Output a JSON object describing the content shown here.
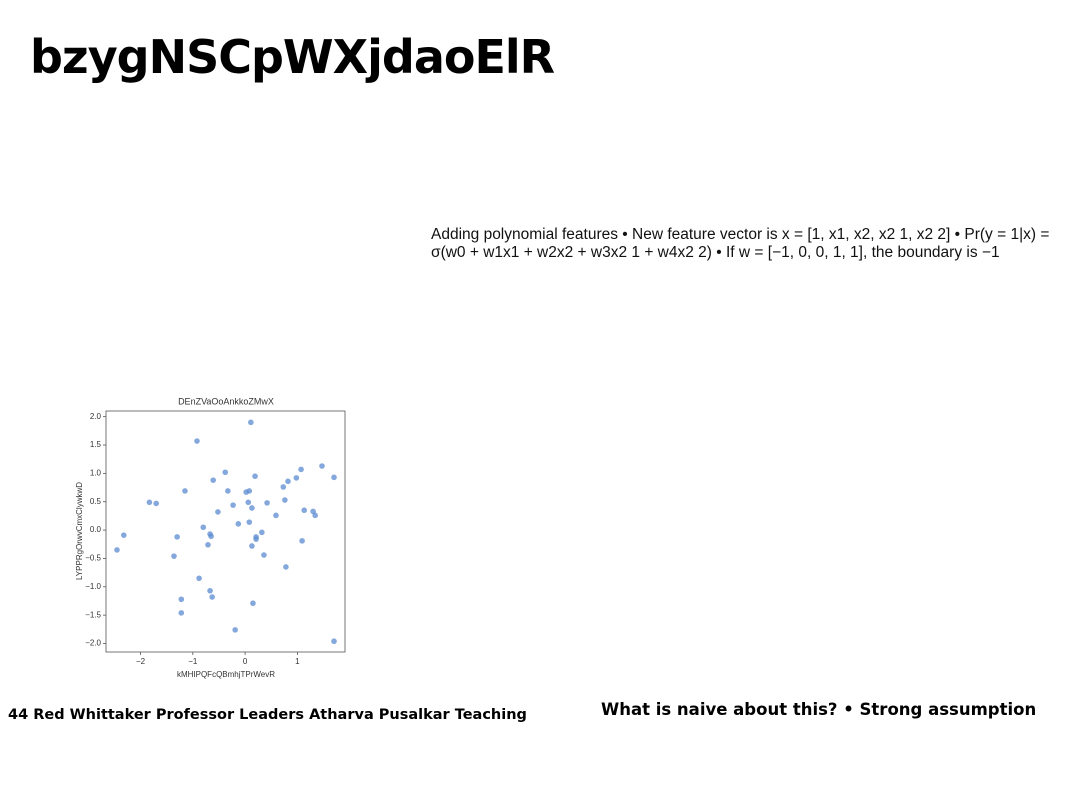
{
  "header": {
    "title": "bzygNSCpWXjdaoElR"
  },
  "body": {
    "text": "Adding polynomial features • New feature vector is x = [1, x1, x2, x2 1, x2 2] • Pr(y = 1|x) = σ(w0 + w1x1 + w2x2 + w3x2 1 + w4x2 2) • If w = [−1, 0, 0, 1, 1], the boundary is −1"
  },
  "footer": {
    "left": "44 Red Whittaker Professor Leaders Atharva Pusalkar Teaching",
    "right": "What is naive about this? • Strong assumption"
  },
  "chart_data": {
    "type": "scatter",
    "title": "DEnZVaOoAnkkoZMwX",
    "xlabel": "kMHIPQFcQBmhjTPrWevR",
    "ylabel": "LYPPRgOrwvCmxClywkwD",
    "color": "#5b8bd0",
    "x": [
      -2.45,
      -2.32,
      -1.83,
      -1.7,
      -1.36,
      -1.3,
      -1.15,
      -1.22,
      -1.22,
      -0.92,
      -0.88,
      -0.8,
      -0.71,
      -0.67,
      -0.65,
      -0.67,
      -0.63,
      -0.61,
      -0.52,
      -0.38,
      -0.33,
      -0.23,
      -0.19,
      -0.13,
      0.02,
      0.06,
      0.08,
      0.08,
      0.11,
      0.13,
      0.13,
      0.15,
      0.19,
      0.21,
      0.21,
      0.32,
      0.36,
      0.42,
      0.59,
      0.73,
      0.76,
      0.82,
      0.78,
      0.98,
      1.07,
      1.09,
      1.13,
      1.3,
      1.34,
      1.47,
      1.7,
      1.7
    ],
    "values": [
      -0.35,
      -0.09,
      0.49,
      0.47,
      -0.46,
      -0.12,
      0.69,
      -1.22,
      -1.46,
      1.57,
      -0.85,
      0.05,
      -0.26,
      -0.07,
      -0.11,
      -1.07,
      -1.18,
      0.88,
      0.32,
      1.02,
      0.69,
      0.44,
      -1.76,
      0.11,
      0.67,
      0.49,
      0.69,
      0.14,
      1.9,
      -0.28,
      0.39,
      -1.29,
      0.95,
      -0.12,
      -0.16,
      -0.04,
      -0.44,
      0.48,
      0.26,
      0.76,
      0.53,
      0.86,
      -0.65,
      0.92,
      1.07,
      -0.19,
      0.35,
      0.33,
      0.26,
      1.13,
      0.93,
      -1.96
    ],
    "xlim": [
      -2.66,
      1.91
    ],
    "ylim": [
      -2.15,
      2.1
    ],
    "xticks": [
      {
        "value": -2,
        "label": "−2"
      },
      {
        "value": -1,
        "label": "−1"
      },
      0,
      1
    ],
    "yticks": [
      {
        "value": 2,
        "label": "2.0"
      },
      1.5,
      {
        "value": 1,
        "label": "1.0"
      },
      0.5,
      {
        "value": 0,
        "label": "0.0"
      },
      {
        "value": -0.5,
        "label": "−0.5"
      },
      {
        "value": -1,
        "label": "−1.0"
      },
      {
        "value": -1.5,
        "label": "−1.5"
      },
      {
        "value": -2,
        "label": "−2.0"
      }
    ]
  }
}
